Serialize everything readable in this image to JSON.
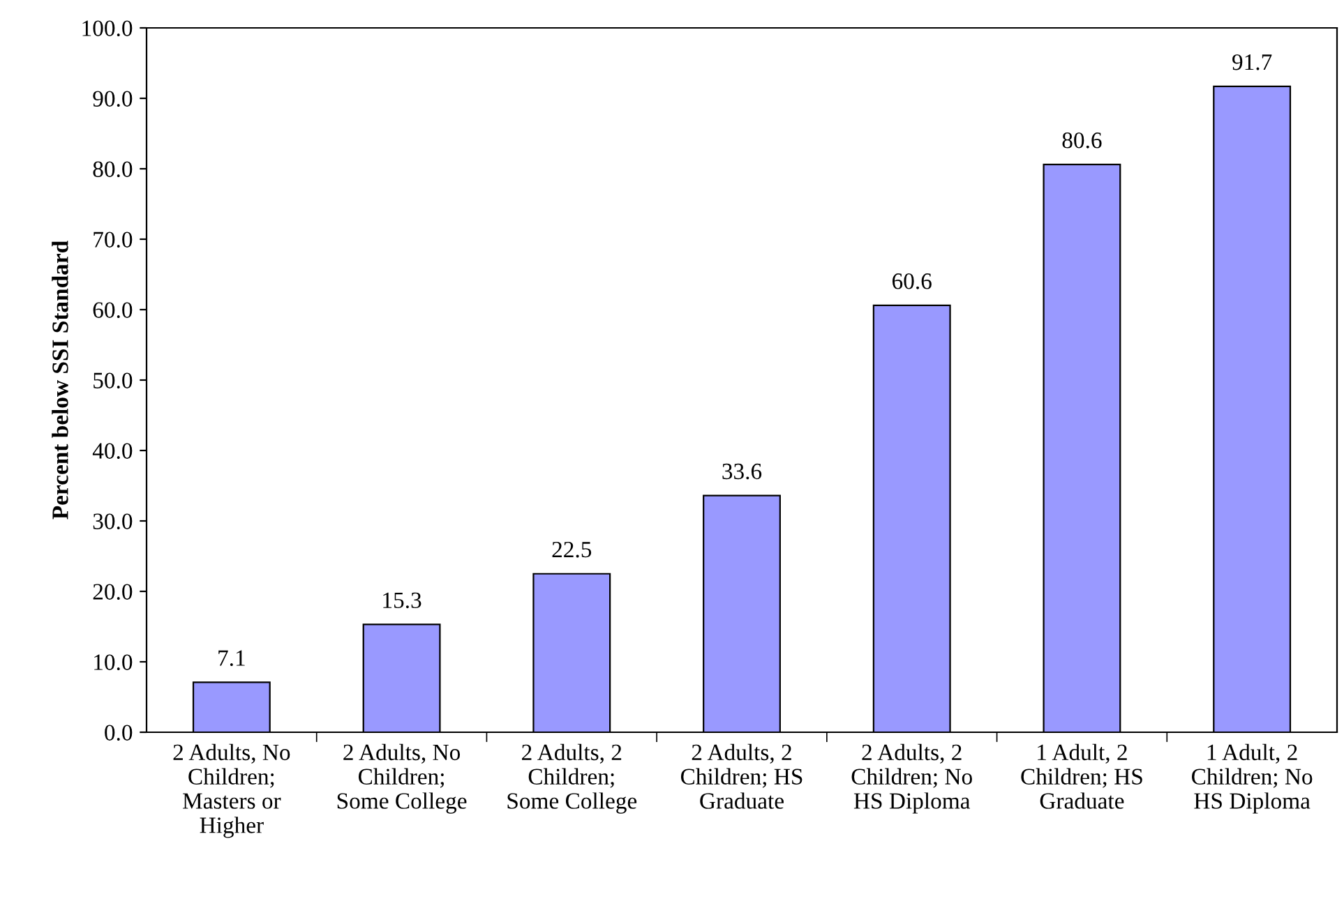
{
  "chart_data": {
    "type": "bar",
    "ylabel": "Percent below SSI Standard",
    "categories": [
      "2 Adults, No\nChildren;\nMasters or\nHigher",
      "2 Adults, No\nChildren;\nSome College",
      "2 Adults, 2\nChildren;\nSome College",
      "2 Adults, 2\nChildren; HS\nGraduate",
      "2 Adults, 2\nChildren; No\nHS Diploma",
      "1 Adult, 2\nChildren; HS\nGraduate",
      "1 Adult, 2\nChildren; No\nHS Diploma"
    ],
    "values": [
      7.1,
      15.3,
      22.5,
      33.6,
      60.6,
      80.6,
      91.7
    ],
    "color": "#9999ff",
    "ylim": [
      0,
      100
    ],
    "yticks": [
      {
        "value": 0,
        "label": "0.0"
      },
      {
        "value": 10,
        "label": "10.0"
      },
      {
        "value": 20,
        "label": "20.0"
      },
      {
        "value": 30,
        "label": "30.0"
      },
      {
        "value": 40,
        "label": "40.0"
      },
      {
        "value": 50,
        "label": "50.0"
      },
      {
        "value": 60,
        "label": "60.0"
      },
      {
        "value": 70,
        "label": "70.0"
      },
      {
        "value": 80,
        "label": "80.0"
      },
      {
        "value": 90,
        "label": "90.0"
      },
      {
        "value": 100,
        "label": "100.0"
      }
    ],
    "data_labels": true,
    "grid": false,
    "legend": false
  }
}
